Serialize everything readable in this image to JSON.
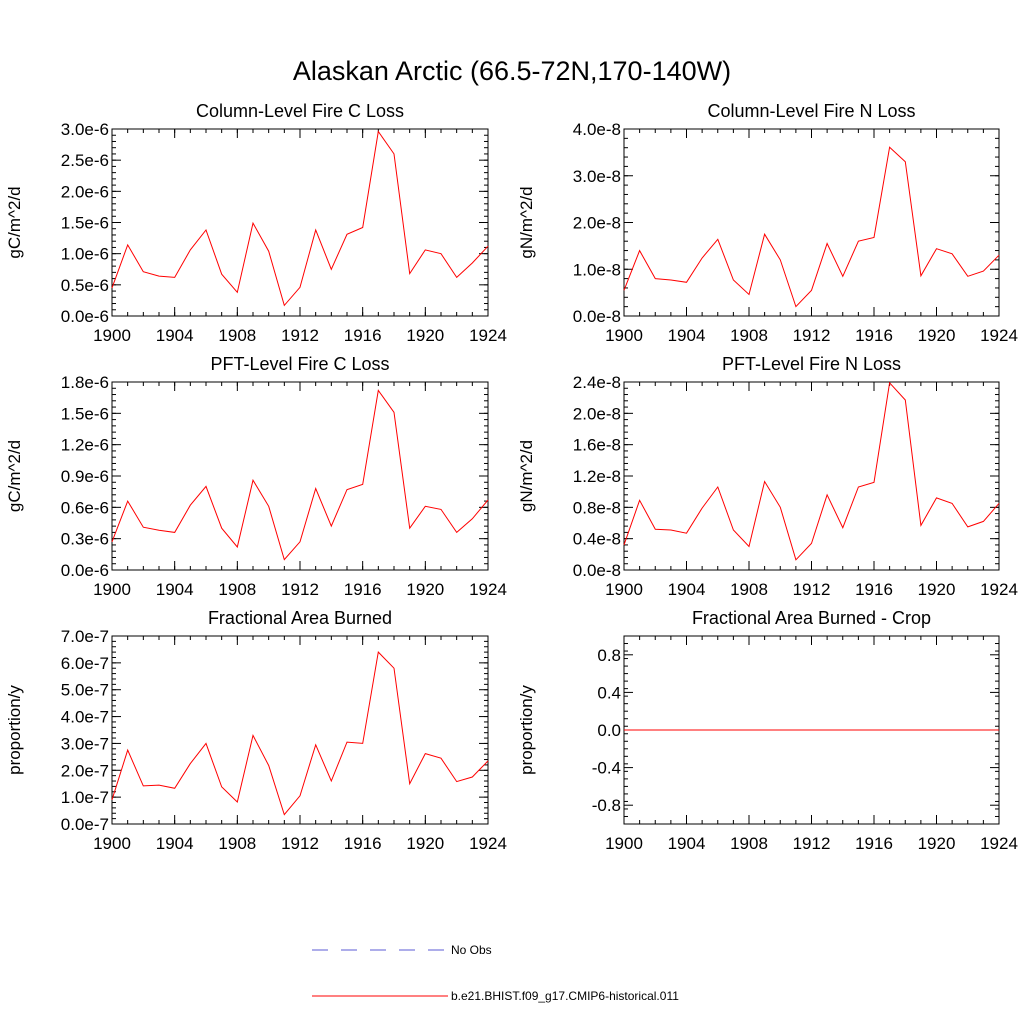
{
  "figure": {
    "title": "Alaskan Arctic (66.5-72N,170-140W)"
  },
  "legend": {
    "entries": [
      {
        "label": "No Obs",
        "color": "#5b5bd6",
        "dash": "dashed"
      },
      {
        "label": "b.e21.BHIST.f09_g17.CMIP6-historical.011",
        "color": "#ff0000",
        "dash": "solid"
      }
    ]
  },
  "chart_data": [
    {
      "type": "line",
      "title": "Column-Level Fire C Loss",
      "xlabel": "",
      "ylabel": "gC/m^2/d",
      "xlim": [
        1900,
        1924
      ],
      "ylim": [
        0,
        3e-06
      ],
      "xticks": [
        1900,
        1904,
        1908,
        1912,
        1916,
        1920,
        1924
      ],
      "xtick_labels": [
        "1900",
        "1904",
        "1908",
        "1912",
        "1916",
        "1920",
        "1924"
      ],
      "yticks": [
        0,
        5e-07,
        1e-06,
        1.5e-06,
        2e-06,
        2.5e-06,
        3e-06
      ],
      "ytick_labels": [
        "0.0e-6",
        "0.5e-6",
        "1.0e-6",
        "1.5e-6",
        "2.0e-6",
        "2.5e-6",
        "3.0e-6"
      ],
      "x": [
        1900,
        1901,
        1902,
        1903,
        1904,
        1905,
        1906,
        1907,
        1908,
        1909,
        1910,
        1911,
        1912,
        1913,
        1914,
        1915,
        1916,
        1917,
        1918,
        1919,
        1920,
        1921,
        1922,
        1923,
        1924
      ],
      "series": [
        {
          "name": "b.e21.BHIST.f09_g17.CMIP6-historical.011",
          "color": "#ff0000",
          "values": [
            4.5e-07,
            1.14e-06,
            7.1e-07,
            6.4e-07,
            6.2e-07,
            1.06e-06,
            1.38e-06,
            6.7e-07,
            3.8e-07,
            1.49e-06,
            1.04e-06,
            1.7e-07,
            4.6e-07,
            1.38e-06,
            7.5e-07,
            1.31e-06,
            1.42e-06,
            2.96e-06,
            2.6e-06,
            6.8e-07,
            1.06e-06,
            1e-06,
            6.2e-07,
            8.5e-07,
            1.12e-06
          ]
        }
      ]
    },
    {
      "type": "line",
      "title": "Column-Level Fire N Loss",
      "xlabel": "",
      "ylabel": "gN/m^2/d",
      "xlim": [
        1900,
        1924
      ],
      "ylim": [
        0,
        4e-08
      ],
      "xticks": [
        1900,
        1904,
        1908,
        1912,
        1916,
        1920,
        1924
      ],
      "xtick_labels": [
        "1900",
        "1904",
        "1908",
        "1912",
        "1916",
        "1920",
        "1924"
      ],
      "yticks": [
        0,
        1e-08,
        2e-08,
        3e-08,
        4e-08
      ],
      "ytick_labels": [
        "0.0e-8",
        "1.0e-8",
        "2.0e-8",
        "3.0e-8",
        "4.0e-8"
      ],
      "x": [
        1900,
        1901,
        1902,
        1903,
        1904,
        1905,
        1906,
        1907,
        1908,
        1909,
        1910,
        1911,
        1912,
        1913,
        1914,
        1915,
        1916,
        1917,
        1918,
        1919,
        1920,
        1921,
        1922,
        1923,
        1924
      ],
      "series": [
        {
          "name": "b.e21.BHIST.f09_g17.CMIP6-historical.011",
          "color": "#ff0000",
          "values": [
            5.5e-09,
            1.4e-08,
            8e-09,
            7.7e-09,
            7.2e-09,
            1.24e-08,
            1.64e-08,
            7.7e-09,
            4.6e-09,
            1.75e-08,
            1.2e-08,
            2e-09,
            5.5e-09,
            1.55e-08,
            8.5e-09,
            1.6e-08,
            1.68e-08,
            3.61e-08,
            3.3e-08,
            8.6e-09,
            1.44e-08,
            1.33e-08,
            8.5e-09,
            9.6e-09,
            1.3e-08
          ]
        }
      ]
    },
    {
      "type": "line",
      "title": "PFT-Level Fire C Loss",
      "xlabel": "",
      "ylabel": "gC/m^2/d",
      "xlim": [
        1900,
        1924
      ],
      "ylim": [
        0,
        1.8e-06
      ],
      "xticks": [
        1900,
        1904,
        1908,
        1912,
        1916,
        1920,
        1924
      ],
      "xtick_labels": [
        "1900",
        "1904",
        "1908",
        "1912",
        "1916",
        "1920",
        "1924"
      ],
      "yticks": [
        0,
        3e-07,
        6e-07,
        9e-07,
        1.2e-06,
        1.5e-06,
        1.8e-06
      ],
      "ytick_labels": [
        "0.0e-6",
        "0.3e-6",
        "0.6e-6",
        "0.9e-6",
        "1.2e-6",
        "1.5e-6",
        "1.8e-6"
      ],
      "x": [
        1900,
        1901,
        1902,
        1903,
        1904,
        1905,
        1906,
        1907,
        1908,
        1909,
        1910,
        1911,
        1912,
        1913,
        1914,
        1915,
        1916,
        1917,
        1918,
        1919,
        1920,
        1921,
        1922,
        1923,
        1924
      ],
      "series": [
        {
          "name": "b.e21.BHIST.f09_g17.CMIP6-historical.011",
          "color": "#ff0000",
          "values": [
            2.7e-07,
            6.6e-07,
            4.1e-07,
            3.8e-07,
            3.6e-07,
            6.2e-07,
            8e-07,
            4e-07,
            2.2e-07,
            8.6e-07,
            6.1e-07,
            1e-07,
            2.7e-07,
            7.8e-07,
            4.2e-07,
            7.7e-07,
            8.2e-07,
            1.72e-06,
            1.51e-06,
            4e-07,
            6.1e-07,
            5.8e-07,
            3.6e-07,
            4.9e-07,
            6.7e-07
          ]
        }
      ]
    },
    {
      "type": "line",
      "title": "PFT-Level Fire N Loss",
      "xlabel": "",
      "ylabel": "gN/m^2/d",
      "xlim": [
        1900,
        1924
      ],
      "ylim": [
        0,
        2.4e-08
      ],
      "xticks": [
        1900,
        1904,
        1908,
        1912,
        1916,
        1920,
        1924
      ],
      "xtick_labels": [
        "1900",
        "1904",
        "1908",
        "1912",
        "1916",
        "1920",
        "1924"
      ],
      "yticks": [
        0,
        4e-09,
        8e-09,
        1.2e-08,
        1.6e-08,
        2e-08,
        2.4e-08
      ],
      "ytick_labels": [
        "0.0e-8",
        "0.4e-8",
        "0.8e-8",
        "1.2e-8",
        "1.6e-8",
        "2.0e-8",
        "2.4e-8"
      ],
      "x": [
        1900,
        1901,
        1902,
        1903,
        1904,
        1905,
        1906,
        1907,
        1908,
        1909,
        1910,
        1911,
        1912,
        1913,
        1914,
        1915,
        1916,
        1917,
        1918,
        1919,
        1920,
        1921,
        1922,
        1923,
        1924
      ],
      "series": [
        {
          "name": "b.e21.BHIST.f09_g17.CMIP6-historical.011",
          "color": "#ff0000",
          "values": [
            3.2e-09,
            8.9e-09,
            5.2e-09,
            5.1e-09,
            4.7e-09,
            7.9e-09,
            1.06e-08,
            5.1e-09,
            3e-09,
            1.13e-08,
            8e-09,
            1.3e-09,
            3.4e-09,
            9.6e-09,
            5.4e-09,
            1.06e-08,
            1.12e-08,
            2.39e-08,
            2.17e-08,
            5.7e-09,
            9.2e-09,
            8.5e-09,
            5.5e-09,
            6.2e-09,
            8.5e-09
          ]
        }
      ]
    },
    {
      "type": "line",
      "title": "Fractional Area Burned",
      "xlabel": "",
      "ylabel": "proportion/y",
      "xlim": [
        1900,
        1924
      ],
      "ylim": [
        0,
        7e-07
      ],
      "xticks": [
        1900,
        1904,
        1908,
        1912,
        1916,
        1920,
        1924
      ],
      "xtick_labels": [
        "1900",
        "1904",
        "1908",
        "1912",
        "1916",
        "1920",
        "1924"
      ],
      "yticks": [
        0,
        1e-07,
        2e-07,
        3e-07,
        4e-07,
        5e-07,
        6e-07,
        7e-07
      ],
      "ytick_labels": [
        "0.0e-7",
        "1.0e-7",
        "2.0e-7",
        "3.0e-7",
        "4.0e-7",
        "5.0e-7",
        "6.0e-7",
        "7.0e-7"
      ],
      "x": [
        1900,
        1901,
        1902,
        1903,
        1904,
        1905,
        1906,
        1907,
        1908,
        1909,
        1910,
        1911,
        1912,
        1913,
        1914,
        1915,
        1916,
        1917,
        1918,
        1919,
        1920,
        1921,
        1922,
        1923,
        1924
      ],
      "series": [
        {
          "name": "b.e21.BHIST.f09_g17.CMIP6-historical.011",
          "color": "#ff0000",
          "values": [
            9e-08,
            2.75e-07,
            1.42e-07,
            1.45e-07,
            1.33e-07,
            2.25e-07,
            3e-07,
            1.38e-07,
            8.2e-08,
            3.3e-07,
            2.18e-07,
            3.5e-08,
            1.05e-07,
            2.95e-07,
            1.6e-07,
            3.05e-07,
            3e-07,
            6.4e-07,
            5.8e-07,
            1.5e-07,
            2.62e-07,
            2.45e-07,
            1.58e-07,
            1.75e-07,
            2.35e-07
          ]
        }
      ]
    },
    {
      "type": "line",
      "title": "Fractional Area Burned - Crop",
      "xlabel": "",
      "ylabel": "proportion/y",
      "xlim": [
        1900,
        1924
      ],
      "ylim": [
        -1.0,
        1.0
      ],
      "xticks": [
        1900,
        1904,
        1908,
        1912,
        1916,
        1920,
        1924
      ],
      "xtick_labels": [
        "1900",
        "1904",
        "1908",
        "1912",
        "1916",
        "1920",
        "1924"
      ],
      "yticks": [
        -0.8,
        -0.4,
        0.0,
        0.4,
        0.8
      ],
      "ytick_labels": [
        "-0.8",
        "-0.4",
        "0.0",
        "0.4",
        "0.8"
      ],
      "x": [
        1900,
        1901,
        1902,
        1903,
        1904,
        1905,
        1906,
        1907,
        1908,
        1909,
        1910,
        1911,
        1912,
        1913,
        1914,
        1915,
        1916,
        1917,
        1918,
        1919,
        1920,
        1921,
        1922,
        1923,
        1924
      ],
      "series": [
        {
          "name": "b.e21.BHIST.f09_g17.CMIP6-historical.011",
          "color": "#ff0000",
          "values": [
            0,
            0,
            0,
            0,
            0,
            0,
            0,
            0,
            0,
            0,
            0,
            0,
            0,
            0,
            0,
            0,
            0,
            0,
            0,
            0,
            0,
            0,
            0,
            0,
            0
          ]
        }
      ]
    }
  ]
}
